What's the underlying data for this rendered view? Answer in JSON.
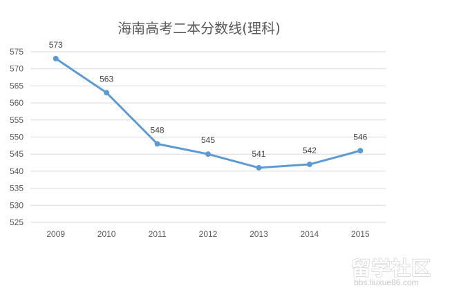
{
  "chart_data": {
    "type": "line",
    "title": "海南高考二本分数线(理科)",
    "categories": [
      "2009",
      "2010",
      "2011",
      "2012",
      "2013",
      "2014",
      "2015"
    ],
    "values": [
      573,
      563,
      548,
      545,
      541,
      542,
      546
    ],
    "ylim": [
      525,
      575
    ],
    "yticks": [
      "575",
      "570",
      "565",
      "560",
      "555",
      "550",
      "545",
      "540",
      "535",
      "530",
      "525"
    ],
    "grid": true,
    "data_labels": true,
    "line_color": "#5b9bd5"
  },
  "watermark": {
    "text": "留学社区",
    "url": "bbs.liuxue86.com"
  }
}
